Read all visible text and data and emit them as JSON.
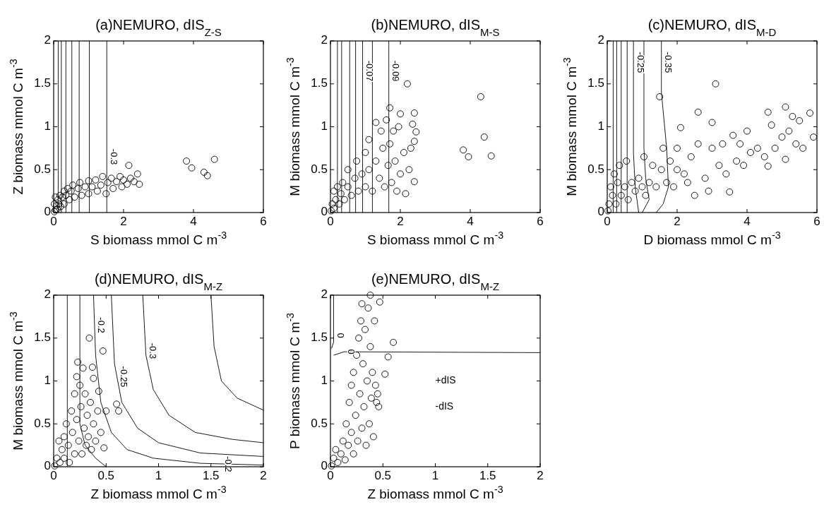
{
  "chart_data": [
    {
      "type": "scatter",
      "title": "(a)NEMURO, dIS$_{Z-S}$",
      "xlabel": "S biomass mmol C m$^{-3}$",
      "ylabel": "Z biomass mmol C m$^{-3}$",
      "xlim": [
        0,
        6
      ],
      "xticks": [
        0,
        2,
        4,
        6
      ],
      "ylim": [
        0,
        2
      ],
      "yticks": [
        0,
        0.5,
        1,
        1.5,
        2
      ],
      "annotations": [
        {
          "text": "-0.3",
          "x": 1.52,
          "y": 0.65
        }
      ],
      "series": [
        {
          "color": "#000000",
          "marker": "circle",
          "x": [
            0.02,
            0.05,
            0.08,
            0.1,
            0.12,
            0.15,
            0.18,
            0.2,
            0.25,
            0.3,
            0.3,
            0.35,
            0.4,
            0.45,
            0.5,
            0.55,
            0.6,
            0.7,
            0.75,
            0.8,
            0.9,
            1.0,
            1.0,
            1.1,
            1.2,
            1.25,
            1.35,
            1.4,
            1.5,
            1.55,
            1.65,
            1.7,
            1.8,
            1.9,
            1.95,
            2.0,
            2.1,
            2.15,
            2.2,
            2.3,
            2.4,
            2.45,
            0.05,
            0.02,
            3.8,
            3.95,
            4.3,
            4.4,
            4.6
          ],
          "values": [
            0.01,
            0.03,
            0.08,
            0.04,
            0.15,
            0.1,
            0.2,
            0.07,
            0.18,
            0.25,
            0.1,
            0.2,
            0.28,
            0.15,
            0.25,
            0.32,
            0.18,
            0.28,
            0.35,
            0.2,
            0.3,
            0.37,
            0.22,
            0.3,
            0.38,
            0.25,
            0.32,
            0.42,
            0.22,
            0.35,
            0.4,
            0.28,
            0.36,
            0.42,
            0.3,
            0.38,
            0.33,
            0.55,
            0.4,
            0.36,
            0.45,
            0.33,
            0.18,
            0.1,
            0.6,
            0.52,
            0.47,
            0.43,
            0.62
          ]
        },
        {
          "type": "line",
          "marker": "none",
          "color": "#000000",
          "x": [
            0.13,
            0.13
          ],
          "values": [
            0,
            2
          ]
        },
        {
          "type": "line",
          "marker": "none",
          "color": "#000000",
          "x": [
            0.22,
            0.22
          ],
          "values": [
            0,
            2
          ]
        },
        {
          "type": "line",
          "marker": "none",
          "color": "#000000",
          "x": [
            0.35,
            0.35
          ],
          "values": [
            0,
            2
          ]
        },
        {
          "type": "line",
          "marker": "none",
          "color": "#000000",
          "x": [
            0.52,
            0.52
          ],
          "values": [
            0,
            2
          ]
        },
        {
          "type": "line",
          "marker": "none",
          "color": "#000000",
          "x": [
            0.73,
            0.73
          ],
          "values": [
            0,
            2
          ]
        },
        {
          "type": "line",
          "marker": "none",
          "color": "#000000",
          "x": [
            1.02,
            1.02
          ],
          "values": [
            0,
            2
          ]
        },
        {
          "type": "line",
          "marker": "none",
          "color": "#000000",
          "x": [
            1.52,
            1.52
          ],
          "values": [
            0,
            2
          ]
        }
      ]
    },
    {
      "type": "scatter",
      "title": "(b)NEMURO, dIS$_{M-S}$",
      "xlabel": "S biomass mmol C m$^{-3}$",
      "ylabel": "M biomass mmol C m$^{-3}$",
      "xlim": [
        0,
        6
      ],
      "xticks": [
        0,
        2,
        4,
        6
      ],
      "ylim": [
        0,
        2
      ],
      "yticks": [
        0,
        0.5,
        1,
        1.5,
        2
      ],
      "annotations": [
        {
          "text": "-0.07",
          "x": 0.92,
          "y": 1.65
        },
        {
          "text": "-0.09",
          "x": 1.67,
          "y": 1.65
        }
      ],
      "series": [
        {
          "color": "#000000",
          "marker": "circle",
          "x": [
            0.02,
            0.05,
            0.1,
            0.1,
            0.15,
            0.2,
            0.25,
            0.3,
            0.35,
            0.4,
            0.5,
            0.5,
            0.6,
            0.7,
            0.75,
            0.8,
            0.9,
            1.0,
            1.0,
            1.1,
            1.1,
            1.2,
            1.3,
            1.3,
            1.4,
            1.45,
            1.5,
            1.55,
            1.6,
            1.65,
            1.7,
            1.7,
            1.75,
            1.8,
            1.85,
            1.9,
            1.95,
            2.0,
            2.0,
            2.1,
            2.15,
            2.2,
            2.25,
            2.3,
            2.35,
            2.4,
            2.4,
            2.45,
            2.4,
            3.8,
            3.95,
            4.3,
            4.4,
            4.6
          ],
          "values": [
            0.02,
            0.1,
            0.05,
            0.25,
            0.15,
            0.3,
            0.1,
            0.22,
            0.35,
            0.15,
            0.3,
            0.5,
            0.2,
            0.4,
            0.6,
            0.25,
            0.45,
            0.7,
            0.3,
            0.85,
            0.5,
            0.25,
            1.05,
            0.6,
            0.4,
            0.95,
            0.75,
            0.3,
            1.08,
            0.55,
            1.22,
            0.8,
            0.35,
            0.95,
            0.6,
            0.25,
            1.0,
            0.45,
            1.15,
            0.7,
            0.22,
            1.5,
            0.5,
            0.75,
            1.03,
            1.16,
            0.83,
            0.94,
            0.36,
            0.73,
            0.65,
            1.35,
            0.88,
            0.66
          ]
        },
        {
          "type": "line",
          "marker": "none",
          "color": "#000000",
          "x": [
            0.2,
            0.2
          ],
          "values": [
            0,
            2
          ]
        },
        {
          "type": "line",
          "marker": "none",
          "color": "#000000",
          "x": [
            0.32,
            0.32
          ],
          "values": [
            0,
            2
          ]
        },
        {
          "type": "line",
          "marker": "none",
          "color": "#000000",
          "x": [
            0.55,
            0.55
          ],
          "values": [
            0,
            2
          ]
        },
        {
          "type": "line",
          "marker": "none",
          "color": "#000000",
          "x": [
            0.72,
            0.72
          ],
          "values": [
            0,
            2
          ]
        },
        {
          "type": "line",
          "marker": "none",
          "color": "#000000",
          "x": [
            0.92,
            0.92
          ],
          "values": [
            0,
            2
          ]
        },
        {
          "type": "line",
          "marker": "none",
          "color": "#000000",
          "x": [
            1.2,
            1.2
          ],
          "values": [
            0,
            2
          ]
        },
        {
          "type": "line",
          "marker": "none",
          "color": "#000000",
          "x": [
            1.67,
            1.67
          ],
          "values": [
            0,
            2
          ]
        }
      ]
    },
    {
      "type": "scatter",
      "title": "(c)NEMURO, dIS$_{M-D}$",
      "xlabel": "D biomass mmol C m$^{-3}$",
      "ylabel": "M biomass mmol C m$^{-3}$",
      "xlim": [
        0,
        6
      ],
      "xticks": [
        0,
        2,
        4,
        6
      ],
      "ylim": [
        0,
        2
      ],
      "yticks": [
        0,
        0.5,
        1,
        1.5,
        2
      ],
      "annotations": [
        {
          "text": "-0.25",
          "x": 0.75,
          "y": 1.75
        },
        {
          "text": "-0.35",
          "x": 1.55,
          "y": 1.75
        }
      ],
      "series": [
        {
          "color": "#000000",
          "marker": "circle",
          "x": [
            0.02,
            0.05,
            0.1,
            0.15,
            0.2,
            0.25,
            0.3,
            0.35,
            0.4,
            0.5,
            0.55,
            0.6,
            0.7,
            0.8,
            0.9,
            1.0,
            1.05,
            1.1,
            1.2,
            1.3,
            1.4,
            1.5,
            1.55,
            1.6,
            1.7,
            1.8,
            1.9,
            2.0,
            2.0,
            2.1,
            2.2,
            2.3,
            2.4,
            2.5,
            2.6,
            2.6,
            2.8,
            2.9,
            3.0,
            3.0,
            3.1,
            3.2,
            3.3,
            3.4,
            3.5,
            3.6,
            3.7,
            3.8,
            3.9,
            4.0,
            4.1,
            4.3,
            4.5,
            4.6,
            4.6,
            4.7,
            4.8,
            5.0,
            5.1,
            5.1,
            5.2,
            5.3,
            5.4,
            5.5,
            5.6,
            5.8,
            5.9
          ],
          "values": [
            0.02,
            0.1,
            0.3,
            0.2,
            0.45,
            0.1,
            0.35,
            0.55,
            0.2,
            0.3,
            0.6,
            0.15,
            0.35,
            0.25,
            0.4,
            0.3,
            0.65,
            0.2,
            0.35,
            0.55,
            0.3,
            1.35,
            0.5,
            0.75,
            0.35,
            0.6,
            0.3,
            0.5,
            0.75,
            0.99,
            0.45,
            0.35,
            0.65,
            0.2,
            1.17,
            0.8,
            0.4,
            0.25,
            0.75,
            1.05,
            1.5,
            0.55,
            0.8,
            0.45,
            0.24,
            0.9,
            0.6,
            0.8,
            0.55,
            0.95,
            0.7,
            0.75,
            0.65,
            1.17,
            0.54,
            1.02,
            0.75,
            0.88,
            1.23,
            0.62,
            0.95,
            1.12,
            0.8,
            1.07,
            0.75,
            1.16,
            0.88
          ]
        },
        {
          "type": "line",
          "marker": "none",
          "color": "#000000",
          "x": [
            0.17,
            0.17
          ],
          "values": [
            0,
            2
          ]
        },
        {
          "type": "line",
          "marker": "none",
          "color": "#000000",
          "x": [
            0.27,
            0.27
          ],
          "values": [
            0,
            2
          ]
        },
        {
          "type": "line",
          "marker": "none",
          "color": "#000000",
          "x": [
            0.4,
            0.4
          ],
          "values": [
            0,
            2
          ]
        },
        {
          "type": "line",
          "marker": "none",
          "color": "#000000",
          "x": [
            0.57,
            0.57
          ],
          "values": [
            0,
            2
          ]
        },
        {
          "type": "line",
          "marker": "none",
          "color": "#000000",
          "x": [
            0.75,
            0.75,
            0.8,
            0.9
          ],
          "values": [
            2,
            0.7,
            0.3,
            0
          ]
        },
        {
          "type": "line",
          "marker": "none",
          "color": "#000000",
          "x": [
            1.05,
            1.05,
            1.1,
            1.2,
            1.0
          ],
          "values": [
            2,
            0.75,
            0.4,
            0.15,
            0
          ]
        },
        {
          "type": "line",
          "marker": "none",
          "color": "#000000",
          "x": [
            1.55,
            1.55,
            1.7,
            1.75,
            1.6,
            1.4
          ],
          "values": [
            2,
            1.4,
            0.75,
            0.3,
            0.1,
            0
          ]
        }
      ]
    },
    {
      "type": "scatter",
      "title": "(d)NEMURO, dIS$_{M-Z}$",
      "xlabel": "Z biomass mmol C m$^{-3}$",
      "ylabel": "M biomass mmol C m$^{-3}$",
      "xlim": [
        0,
        2
      ],
      "xticks": [
        0,
        0.5,
        1,
        1.5,
        2
      ],
      "ylim": [
        0,
        2
      ],
      "yticks": [
        0,
        0.5,
        1,
        1.5,
        2
      ],
      "annotations": [
        {
          "text": "-0.2",
          "x": 0.39,
          "y": 1.65
        },
        {
          "text": "-0.25",
          "x": 0.6,
          "y": 1.05
        },
        {
          "text": "-0.3",
          "x": 0.88,
          "y": 1.35
        },
        {
          "text": "-0.2",
          "x": 1.6,
          "y": 0.03
        }
      ],
      "series": [
        {
          "color": "#000000",
          "marker": "circle",
          "x": [
            0.01,
            0.03,
            0.05,
            0.06,
            0.08,
            0.1,
            0.1,
            0.12,
            0.14,
            0.15,
            0.17,
            0.18,
            0.2,
            0.2,
            0.22,
            0.22,
            0.23,
            0.24,
            0.25,
            0.26,
            0.27,
            0.28,
            0.29,
            0.3,
            0.31,
            0.32,
            0.33,
            0.34,
            0.35,
            0.36,
            0.37,
            0.38,
            0.38,
            0.4,
            0.42,
            0.43,
            0.45,
            0.47,
            0.48,
            0.5,
            0.6,
            0.62
          ],
          "values": [
            0.01,
            0.1,
            0.3,
            0.05,
            0.2,
            0.35,
            0.1,
            0.5,
            0.25,
            0.05,
            0.65,
            0.4,
            0.85,
            0.15,
            1.05,
            0.55,
            1.22,
            0.3,
            0.95,
            0.7,
            0.15,
            1.15,
            0.45,
            0.85,
            0.25,
            0.6,
            0.35,
            1.5,
            0.75,
            0.2,
            1.16,
            1.03,
            0.5,
            0.3,
            0.65,
            0.88,
            0.4,
            1.35,
            0.22,
            0.65,
            0.73,
            0.65
          ]
        },
        {
          "type": "line",
          "marker": "none",
          "color": "#000000",
          "x": [
            0.13,
            0.13
          ],
          "values": [
            0,
            2
          ]
        },
        {
          "type": "line",
          "marker": "none",
          "color": "#000000",
          "x": [
            0.25,
            0.25,
            0.3,
            0.4,
            0.5
          ],
          "values": [
            2,
            0.5,
            0.25,
            0.1,
            0
          ]
        },
        {
          "type": "line",
          "marker": "none",
          "color": "#000000",
          "x": [
            0.38,
            0.4,
            0.45,
            0.55,
            0.7,
            0.95,
            1.4,
            2
          ],
          "values": [
            2,
            1.3,
            0.75,
            0.4,
            0.2,
            0.1,
            0.04,
            0.02
          ]
        },
        {
          "type": "line",
          "marker": "none",
          "color": "#000000",
          "x": [
            0.55,
            0.58,
            0.65,
            0.8,
            1.0,
            1.4,
            2
          ],
          "values": [
            2,
            1.2,
            0.75,
            0.45,
            0.28,
            0.16,
            0.12
          ]
        },
        {
          "type": "line",
          "marker": "none",
          "color": "#000000",
          "x": [
            0.85,
            0.88,
            0.95,
            1.1,
            1.35,
            1.7,
            2
          ],
          "values": [
            2,
            1.3,
            0.9,
            0.6,
            0.4,
            0.32,
            0.28
          ]
        },
        {
          "type": "line",
          "marker": "none",
          "color": "#000000",
          "x": [
            1.5,
            1.53,
            1.6,
            1.75,
            2
          ],
          "values": [
            2,
            1.4,
            1.0,
            0.8,
            0.66
          ]
        }
      ]
    },
    {
      "type": "scatter",
      "title": "(e)NEMURO, dIS$_{M-Z}$",
      "xlabel": "Z biomass mmol C m$^{-3}$",
      "ylabel": "P biomass mmol C m$^{-3}$",
      "xlim": [
        0,
        2
      ],
      "xticks": [
        0,
        0.5,
        1,
        1.5,
        2
      ],
      "ylim": [
        0,
        2
      ],
      "yticks": [
        0,
        0.5,
        1,
        1.5,
        2
      ],
      "annotations": [
        {
          "text": "0",
          "x": 0.03,
          "y": 1.53
        },
        {
          "text": "0",
          "x": 0.13,
          "y": 1.34
        },
        "+dIS",
        "-dIS"
      ],
      "series": [
        {
          "color": "#000000",
          "marker": "circle",
          "x": [
            0.01,
            0.03,
            0.05,
            0.07,
            0.1,
            0.12,
            0.14,
            0.15,
            0.17,
            0.18,
            0.2,
            0.2,
            0.22,
            0.22,
            0.24,
            0.25,
            0.26,
            0.27,
            0.28,
            0.29,
            0.3,
            0.3,
            0.31,
            0.32,
            0.33,
            0.34,
            0.35,
            0.36,
            0.37,
            0.38,
            0.38,
            0.39,
            0.4,
            0.41,
            0.42,
            0.43,
            0.44,
            0.45,
            0.46,
            0.47,
            0.52,
            0.55,
            0.6
          ],
          "values": [
            0.01,
            0.1,
            0.2,
            0.05,
            0.15,
            0.3,
            0.08,
            0.5,
            0.25,
            0.75,
            0.4,
            0.95,
            0.15,
            1.1,
            0.6,
            1.3,
            0.3,
            1.5,
            0.85,
            1.7,
            0.45,
            1.9,
            1.2,
            0.7,
            1.6,
            0.25,
            1.0,
            1.85,
            0.5,
            2.0,
            1.4,
            0.8,
            1.1,
            0.35,
            1.7,
            0.95,
            0.75,
            0.85,
            0.7,
            1.92,
            1.08,
            1.28,
            1.45
          ]
        },
        {
          "type": "line",
          "marker": "none",
          "color": "#000000",
          "x": [
            0.03,
            0.03,
            0.01
          ],
          "values": [
            2,
            1.45,
            1.38
          ]
        },
        {
          "type": "line",
          "marker": "none",
          "color": "#000000",
          "x": [
            0.03,
            0.13,
            2
          ],
          "values": [
            1.3,
            1.34,
            1.33
          ]
        }
      ]
    }
  ]
}
